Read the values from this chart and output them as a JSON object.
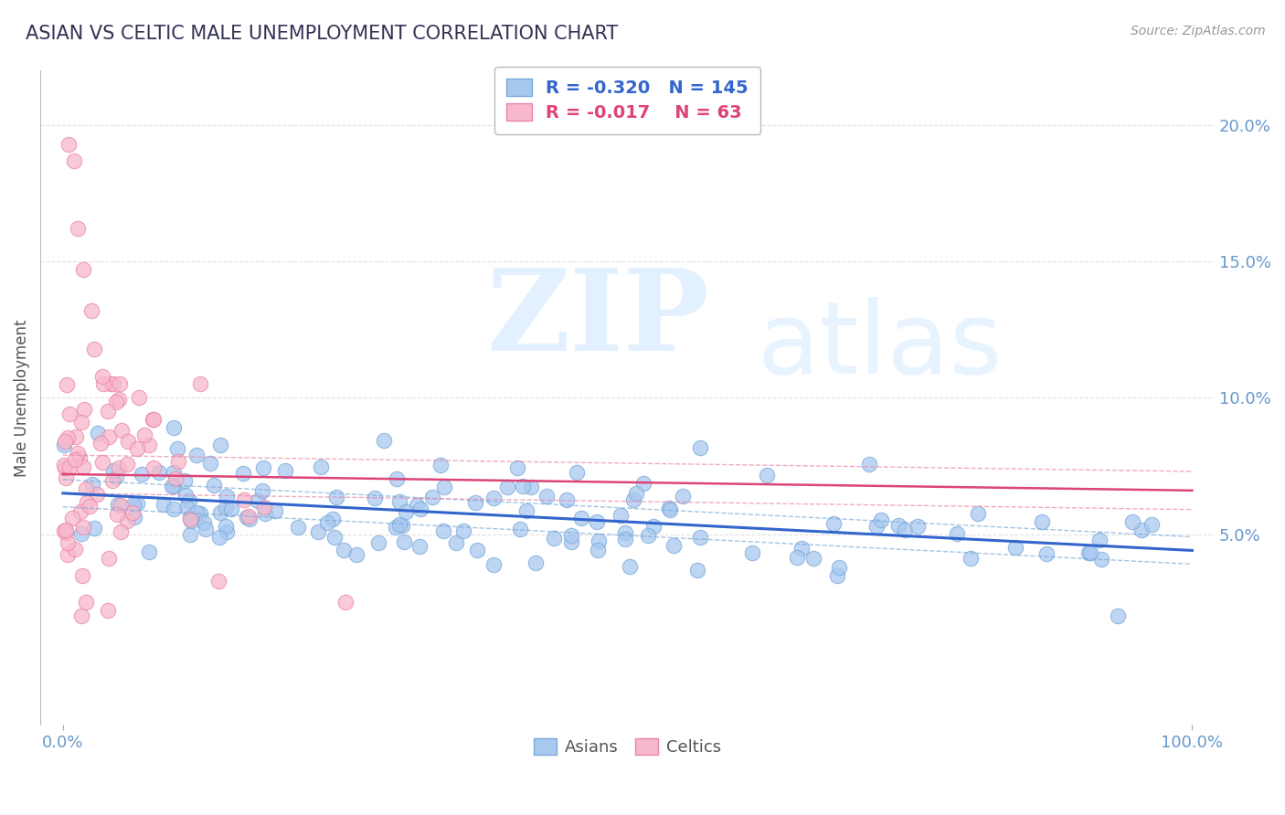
{
  "title": "ASIAN VS CELTIC MALE UNEMPLOYMENT CORRELATION CHART",
  "source": "Source: ZipAtlas.com",
  "ylabel": "Male Unemployment",
  "xlim": [
    -0.02,
    1.02
  ],
  "ylim": [
    -0.02,
    0.22
  ],
  "yticks": [
    0.05,
    0.1,
    0.15,
    0.2
  ],
  "ytick_labels": [
    "5.0%",
    "10.0%",
    "15.0%",
    "20.0%"
  ],
  "xticks": [
    0.0,
    1.0
  ],
  "xtick_labels": [
    "0.0%",
    "100.0%"
  ],
  "asian_color": "#A8C8F0",
  "asian_edge_color": "#7AAAD8",
  "celtic_color": "#F8B8CC",
  "celtic_edge_color": "#E888A8",
  "asian_line_color": "#3366CC",
  "celtic_line_color": "#DD4477",
  "celtic_conf_color": "#E888A8",
  "asian_conf_color": "#7AAAD8",
  "title_color": "#333355",
  "axis_color": "#6699CC",
  "grid_color": "#CCCCCC",
  "asian_R": -0.32,
  "asian_N": 145,
  "celtic_R": -0.017,
  "celtic_N": 63,
  "asian_intercept": 0.065,
  "asian_slope": -0.021,
  "celtic_intercept": 0.072,
  "celtic_slope": -0.006,
  "watermark_zip": "ZIP",
  "watermark_atlas": "atlas",
  "background_color": "#FFFFFF"
}
